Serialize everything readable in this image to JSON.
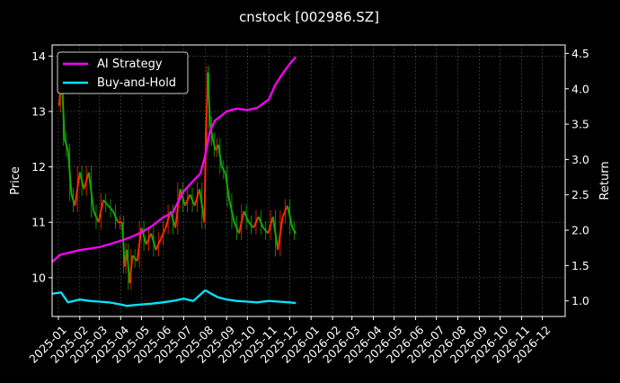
{
  "chart_data": {
    "type": "line",
    "title": "cnstock [002986.SZ]",
    "ylabel": "Price",
    "y2label": "Return",
    "ylim": [
      9.3,
      14.2
    ],
    "y2lim": [
      0.78,
      4.62
    ],
    "yticks": [
      10,
      11,
      12,
      13,
      14
    ],
    "y2ticks": [
      1.0,
      1.5,
      2.0,
      2.5,
      3.0,
      3.5,
      4.0,
      4.5
    ],
    "xlim": [
      "2024-12-23",
      "2027-01-03"
    ],
    "xticks": [
      "2025-01",
      "2025-02",
      "2025-03",
      "2025-04",
      "2025-05",
      "2025-06",
      "2025-07",
      "2025-08",
      "2025-09",
      "2025-10",
      "2025-11",
      "2025-12",
      "2026-01",
      "2026-02",
      "2026-03",
      "2026-04",
      "2026-05",
      "2026-06",
      "2026-07",
      "2026-08",
      "2026-09",
      "2026-10",
      "2026-11",
      "2026-12"
    ],
    "grid": true,
    "legend_position": "top-left",
    "price_series": {
      "name": "Price",
      "colors": {
        "up": "#ff2a00",
        "down": "#11aa00"
      },
      "x": [
        "2025-01-02",
        "2025-01-06",
        "2025-01-10",
        "2025-01-15",
        "2025-01-20",
        "2025-01-25",
        "2025-02-01",
        "2025-02-07",
        "2025-02-14",
        "2025-02-21",
        "2025-02-28",
        "2025-03-07",
        "2025-03-14",
        "2025-03-21",
        "2025-03-28",
        "2025-04-03",
        "2025-04-07",
        "2025-04-10",
        "2025-04-14",
        "2025-04-18",
        "2025-04-25",
        "2025-05-01",
        "2025-05-08",
        "2025-05-15",
        "2025-05-22",
        "2025-05-29",
        "2025-06-05",
        "2025-06-12",
        "2025-06-19",
        "2025-06-26",
        "2025-07-03",
        "2025-07-10",
        "2025-07-17",
        "2025-07-24",
        "2025-07-31",
        "2025-08-02",
        "2025-08-05",
        "2025-08-08",
        "2025-08-12",
        "2025-08-16",
        "2025-08-20",
        "2025-08-25",
        "2025-08-30",
        "2025-09-05",
        "2025-09-12",
        "2025-09-19",
        "2025-09-26",
        "2025-10-03",
        "2025-10-10",
        "2025-10-17",
        "2025-10-24",
        "2025-10-31",
        "2025-11-07",
        "2025-11-14",
        "2025-11-21",
        "2025-11-28",
        "2025-12-05",
        "2025-12-10"
      ],
      "values": [
        13.1,
        13.6,
        12.5,
        12.3,
        11.5,
        11.3,
        11.9,
        11.6,
        11.9,
        11.2,
        11.0,
        11.4,
        11.3,
        11.2,
        11.0,
        11.0,
        10.2,
        10.5,
        9.9,
        10.4,
        10.3,
        10.9,
        10.6,
        10.8,
        10.5,
        10.7,
        10.9,
        11.2,
        10.9,
        11.6,
        11.3,
        11.5,
        11.3,
        11.6,
        11.0,
        12.5,
        13.7,
        12.8,
        12.5,
        12.3,
        12.4,
        12.0,
        11.9,
        11.4,
        11.0,
        10.8,
        11.2,
        11.0,
        10.9,
        11.1,
        10.9,
        10.8,
        11.1,
        10.5,
        11.1,
        11.3,
        10.9,
        10.8
      ]
    },
    "series": [
      {
        "name": "AI Strategy",
        "color": "#ff00ff",
        "axis": "right",
        "x": [
          "2024-12-23",
          "2025-01-03",
          "2025-01-15",
          "2025-02-01",
          "2025-02-15",
          "2025-03-01",
          "2025-03-15",
          "2025-04-01",
          "2025-04-15",
          "2025-05-01",
          "2025-05-15",
          "2025-06-01",
          "2025-06-15",
          "2025-07-01",
          "2025-07-15",
          "2025-07-25",
          "2025-08-01",
          "2025-08-08",
          "2025-08-15",
          "2025-08-22",
          "2025-09-01",
          "2025-09-15",
          "2025-10-01",
          "2025-10-15",
          "2025-11-01",
          "2025-11-10",
          "2025-11-20",
          "2025-12-01",
          "2025-12-10"
        ],
        "values": [
          1.55,
          1.65,
          1.68,
          1.72,
          1.74,
          1.76,
          1.8,
          1.85,
          1.9,
          1.97,
          2.05,
          2.18,
          2.25,
          2.55,
          2.7,
          2.8,
          3.05,
          3.4,
          3.55,
          3.6,
          3.68,
          3.72,
          3.7,
          3.73,
          3.85,
          4.05,
          4.2,
          4.35,
          4.45
        ]
      },
      {
        "name": "Buy-and-Hold",
        "color": "#00e5ff",
        "axis": "right",
        "x": [
          "2024-12-23",
          "2025-01-05",
          "2025-01-15",
          "2025-02-01",
          "2025-02-15",
          "2025-03-01",
          "2025-03-15",
          "2025-04-01",
          "2025-04-10",
          "2025-04-20",
          "2025-05-01",
          "2025-05-15",
          "2025-06-01",
          "2025-06-15",
          "2025-07-01",
          "2025-07-15",
          "2025-08-01",
          "2025-08-10",
          "2025-08-20",
          "2025-09-01",
          "2025-09-15",
          "2025-10-01",
          "2025-10-15",
          "2025-11-01",
          "2025-11-15",
          "2025-12-01",
          "2025-12-10"
        ],
        "values": [
          1.1,
          1.12,
          0.98,
          1.02,
          1.0,
          0.99,
          0.98,
          0.95,
          0.93,
          0.94,
          0.95,
          0.96,
          0.98,
          1.0,
          1.03,
          1.0,
          1.15,
          1.1,
          1.05,
          1.02,
          1.0,
          0.99,
          0.98,
          1.0,
          0.99,
          0.98,
          0.97
        ]
      }
    ]
  }
}
